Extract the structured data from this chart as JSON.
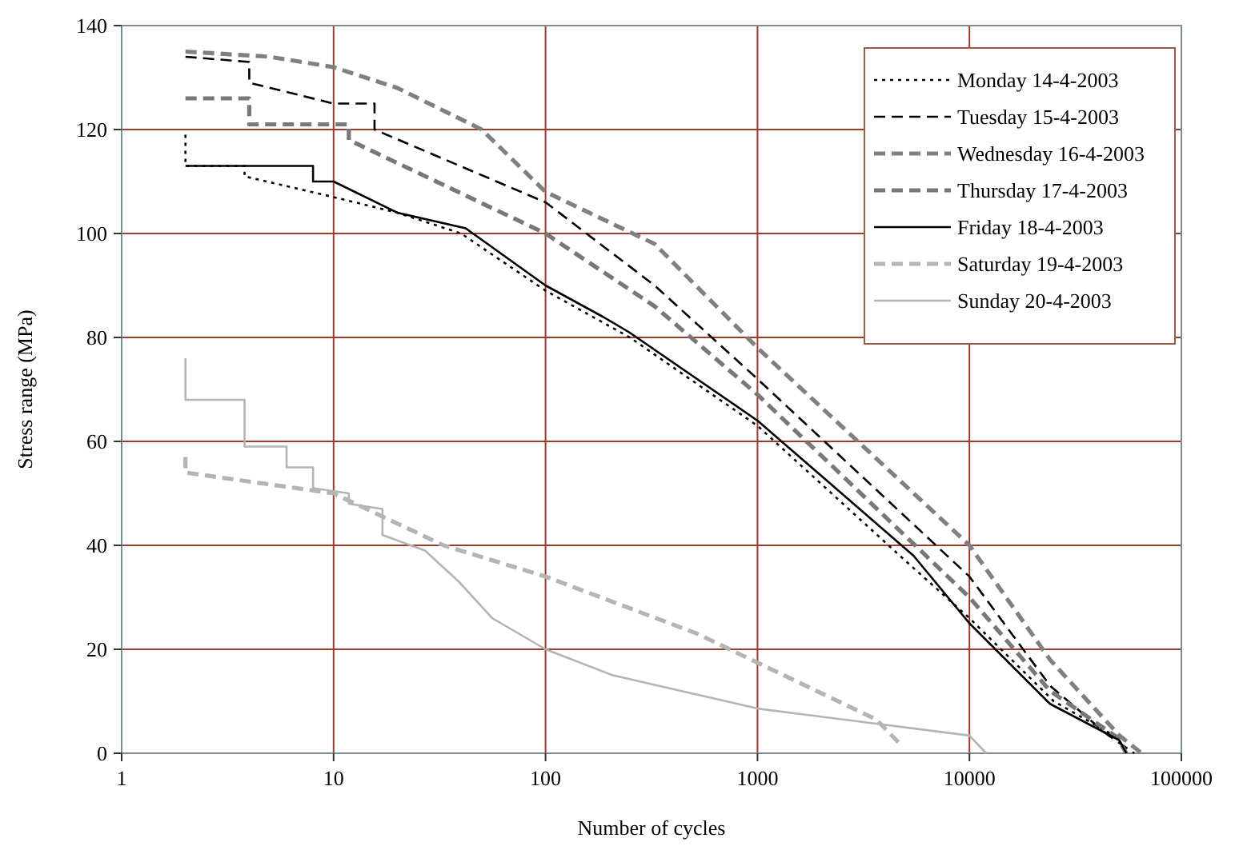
{
  "chart_data": {
    "type": "line",
    "xlabel": "Number of cycles",
    "ylabel": "Stress range (MPa)",
    "log": "x",
    "xlim": [
      1,
      100000
    ],
    "xticks": [
      1,
      10,
      100,
      1000,
      10000,
      100000
    ],
    "ylim": [
      0,
      140
    ],
    "yticks": [
      0,
      20,
      40,
      60,
      80,
      100,
      120,
      140
    ],
    "grid": true,
    "legend": "top right",
    "marker": "none",
    "series": [
      {
        "name": "Monday 14-4-2003",
        "color": "#000000",
        "line_style": "dotted",
        "x": [
          2,
          2,
          3.8,
          3.8,
          10,
          20,
          40,
          100,
          250,
          1000,
          5000,
          10000,
          25000,
          50000,
          55000
        ],
        "values": [
          119,
          113,
          113,
          111,
          107,
          104,
          100,
          89,
          80,
          63,
          37,
          26,
          10,
          3,
          0
        ]
      },
      {
        "name": "Tuesday 15-4-2003",
        "color": "#000000",
        "line_style": "dashed",
        "x": [
          2,
          4,
          4,
          10,
          15.6,
          15.6,
          100,
          327,
          1000,
          10000,
          24000,
          45000,
          60000
        ],
        "values": [
          134,
          133,
          129,
          125,
          125,
          120,
          106,
          90,
          72,
          34,
          13,
          3.5,
          0
        ]
      },
      {
        "name": "Wednesday 16-4-2003",
        "color": "#808080",
        "line_style": "dashed",
        "x": [
          2,
          5,
          10,
          20,
          50,
          100,
          327,
          1000,
          10000,
          24000,
          51000,
          65000
        ],
        "values": [
          135,
          134,
          132,
          128,
          120,
          108,
          98,
          78,
          40,
          18,
          3.4,
          0
        ]
      },
      {
        "name": "Thursday 17-4-2003",
        "color": "#787878",
        "line_style": "dashed",
        "x": [
          2,
          4,
          4,
          11.8,
          11.8,
          100,
          327,
          1000,
          10000,
          24000,
          50000,
          55000
        ],
        "values": [
          126,
          126,
          121,
          121,
          118,
          100,
          86,
          69,
          30,
          12,
          3,
          0
        ]
      },
      {
        "name": "Friday 18-4-2003",
        "color": "#000000",
        "line_style": "solid",
        "x": [
          2,
          8,
          8,
          10,
          20,
          42,
          100,
          186,
          248,
          1000,
          5450,
          10000,
          24000,
          51000,
          55000
        ],
        "values": [
          113,
          113,
          110,
          110,
          104,
          101,
          90,
          84,
          81,
          64,
          38,
          25,
          9.5,
          2.5,
          0
        ]
      },
      {
        "name": "Saturday 19-4-2003",
        "color": "#b4b4b4",
        "line_style": "dashed",
        "x": [
          2,
          2,
          10,
          33,
          100,
          520,
          830,
          3630,
          4650
        ],
        "values": [
          57,
          54,
          50,
          40,
          34,
          23,
          19,
          6.5,
          2
        ]
      },
      {
        "name": "Sunday 20-4-2003",
        "color": "#b4b4b4",
        "line_style": "solid",
        "x": [
          2,
          2,
          3.8,
          3.8,
          6,
          6,
          8,
          8,
          11.8,
          11.8,
          17,
          17,
          27,
          39,
          56,
          100,
          208,
          1000,
          10000,
          12000
        ],
        "values": [
          76,
          68,
          68,
          59,
          59,
          55,
          55,
          51,
          50,
          48,
          47,
          42,
          39,
          33,
          26,
          20,
          15,
          8.6,
          3.4,
          0
        ]
      }
    ]
  }
}
